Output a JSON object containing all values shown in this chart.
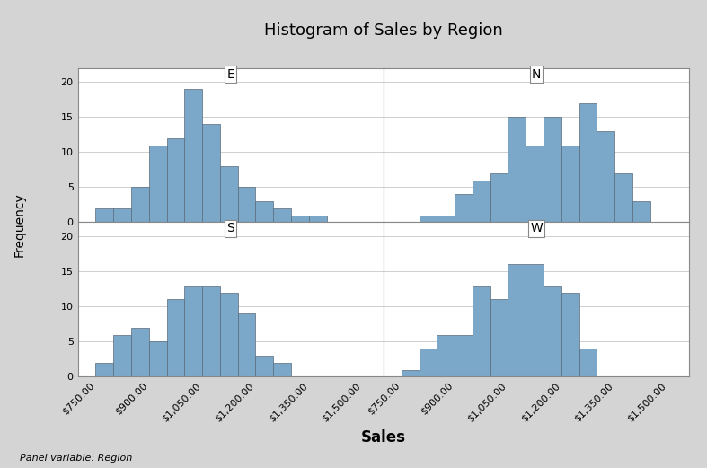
{
  "title": "Histogram of Sales by Region",
  "xlabel": "Sales",
  "ylabel": "Frequency",
  "panel_note": "Panel variable: Region",
  "regions": [
    "E",
    "N",
    "S",
    "W"
  ],
  "bin_edges": [
    700,
    750,
    800,
    850,
    900,
    950,
    1000,
    1050,
    1100,
    1150,
    1200,
    1250,
    1300,
    1350,
    1400,
    1450,
    1500
  ],
  "E_counts": [
    0,
    2,
    2,
    5,
    11,
    12,
    19,
    14,
    8,
    5,
    3,
    2,
    1,
    1,
    0,
    0
  ],
  "N_counts": [
    0,
    0,
    1,
    1,
    4,
    6,
    7,
    15,
    11,
    15,
    11,
    17,
    13,
    7,
    3,
    0
  ],
  "S_counts": [
    0,
    2,
    6,
    7,
    5,
    11,
    13,
    13,
    12,
    9,
    3,
    2,
    0,
    0,
    0,
    0
  ],
  "W_counts": [
    0,
    1,
    4,
    6,
    6,
    13,
    11,
    16,
    16,
    13,
    12,
    4,
    0,
    0,
    0,
    0
  ],
  "bar_color": "#7ba7c9",
  "bar_edge_color": "#5a6a7a",
  "bg_color": "#d4d4d4",
  "panel_bg": "#ffffff",
  "yticks": [
    0,
    5,
    10,
    15,
    20
  ],
  "xticks": [
    750,
    900,
    1050,
    1200,
    1350,
    1500
  ],
  "xlim": [
    700,
    1560
  ],
  "ylim": [
    0,
    22
  ],
  "title_fontsize": 13,
  "label_fontsize": 10,
  "tick_fontsize": 8,
  "panel_label_fontsize": 10
}
